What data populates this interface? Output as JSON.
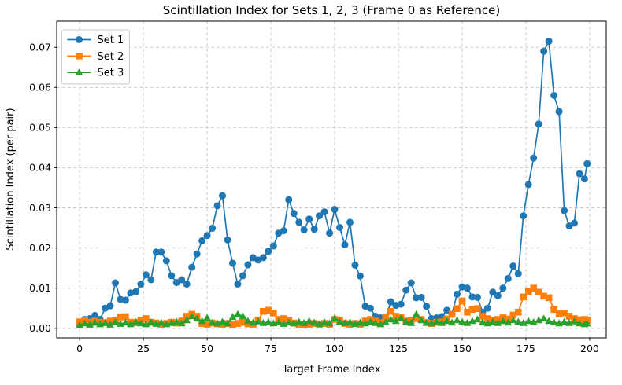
{
  "chart_data": {
    "type": "line",
    "title": "Scintillation Index for Sets 1, 2, 3 (Frame 0 as Reference)",
    "xlabel": "Target Frame Index",
    "ylabel": "Scintillation Index (per pair)",
    "xlim": [
      -9,
      206.5
    ],
    "ylim": [
      -0.0024,
      0.0765
    ],
    "xticks": [
      0,
      25,
      50,
      75,
      100,
      125,
      150,
      175,
      200
    ],
    "yticks": [
      0,
      0.01,
      0.02,
      0.03,
      0.04,
      0.05,
      0.06,
      0.07
    ],
    "ytick_labels": [
      "0.00",
      "0.01",
      "0.02",
      "0.03",
      "0.04",
      "0.05",
      "0.06",
      "0.07"
    ],
    "grid": true,
    "grid_style": "dashed",
    "legend_position": "upper-left",
    "legend_labels": [
      "Set 1",
      "Set 2",
      "Set 3"
    ],
    "x": [
      0,
      2,
      4,
      6,
      8,
      10,
      12,
      14,
      16,
      18,
      20,
      22,
      24,
      26,
      28,
      30,
      32,
      34,
      36,
      38,
      40,
      42,
      44,
      46,
      48,
      50,
      52,
      54,
      56,
      58,
      60,
      62,
      64,
      66,
      68,
      70,
      72,
      74,
      76,
      78,
      80,
      82,
      84,
      86,
      88,
      90,
      92,
      94,
      96,
      98,
      100,
      102,
      104,
      106,
      108,
      110,
      112,
      114,
      116,
      118,
      120,
      122,
      124,
      126,
      128,
      130,
      132,
      134,
      136,
      138,
      140,
      142,
      144,
      146,
      148,
      150,
      152,
      154,
      156,
      158,
      160,
      162,
      164,
      166,
      168,
      170,
      172,
      174,
      176,
      178,
      180,
      182,
      184,
      186,
      188,
      190,
      192,
      194,
      196,
      198,
      199
    ],
    "series": [
      {
        "name": "Set 1",
        "color": "#1f77b4",
        "marker": "circle",
        "values": [
          0.001,
          0.0022,
          0.0024,
          0.0032,
          0.0022,
          0.005,
          0.0056,
          0.0113,
          0.0072,
          0.007,
          0.0088,
          0.0091,
          0.011,
          0.0133,
          0.0121,
          0.019,
          0.019,
          0.0168,
          0.0131,
          0.0114,
          0.0121,
          0.011,
          0.0152,
          0.0185,
          0.0218,
          0.0231,
          0.0249,
          0.0305,
          0.033,
          0.022,
          0.0162,
          0.011,
          0.0131,
          0.0158,
          0.0176,
          0.017,
          0.0176,
          0.0192,
          0.0205,
          0.0237,
          0.0243,
          0.032,
          0.0286,
          0.0264,
          0.0245,
          0.0272,
          0.0247,
          0.028,
          0.029,
          0.0237,
          0.0296,
          0.0251,
          0.0208,
          0.0264,
          0.0157,
          0.013,
          0.0055,
          0.005,
          0.003,
          0.0026,
          0.0024,
          0.0066,
          0.0057,
          0.006,
          0.0095,
          0.0113,
          0.0076,
          0.0077,
          0.0055,
          0.0024,
          0.0026,
          0.0029,
          0.0045,
          0.0035,
          0.0085,
          0.0103,
          0.01,
          0.0078,
          0.0077,
          0.004,
          0.005,
          0.009,
          0.0081,
          0.01,
          0.0124,
          0.0155,
          0.0136,
          0.028,
          0.0358,
          0.0424,
          0.0509,
          0.069,
          0.0715,
          0.058,
          0.054,
          0.0293,
          0.0255,
          0.0262,
          0.0385,
          0.0372,
          0.041
        ]
      },
      {
        "name": "Set 2",
        "color": "#ff7f0e",
        "marker": "square",
        "values": [
          0.0016,
          0.0019,
          0.0015,
          0.0018,
          0.0015,
          0.0014,
          0.0018,
          0.002,
          0.0028,
          0.0029,
          0.0015,
          0.0014,
          0.002,
          0.0024,
          0.0015,
          0.0013,
          0.001,
          0.0012,
          0.0015,
          0.0013,
          0.0018,
          0.003,
          0.0035,
          0.003,
          0.0012,
          0.001,
          0.0013,
          0.0011,
          0.001,
          0.0012,
          0.0009,
          0.0012,
          0.0015,
          0.0011,
          0.001,
          0.002,
          0.0042,
          0.0045,
          0.0038,
          0.0022,
          0.0024,
          0.002,
          0.0013,
          0.001,
          0.0008,
          0.001,
          0.0012,
          0.001,
          0.0012,
          0.001,
          0.0022,
          0.002,
          0.0012,
          0.001,
          0.0012,
          0.001,
          0.0018,
          0.0022,
          0.0018,
          0.0014,
          0.0028,
          0.0042,
          0.003,
          0.0026,
          0.0018,
          0.002,
          0.0024,
          0.0022,
          0.0014,
          0.0012,
          0.0015,
          0.0016,
          0.0023,
          0.0035,
          0.0049,
          0.0068,
          0.004,
          0.0047,
          0.0049,
          0.003,
          0.0024,
          0.002,
          0.0022,
          0.0026,
          0.0023,
          0.0033,
          0.004,
          0.0078,
          0.0092,
          0.01,
          0.009,
          0.008,
          0.0076,
          0.0047,
          0.0036,
          0.0038,
          0.003,
          0.0024,
          0.0021,
          0.0022,
          0.002
        ]
      },
      {
        "name": "Set 3",
        "color": "#2ca02c",
        "marker": "triangle",
        "values": [
          0.0008,
          0.0012,
          0.0009,
          0.0014,
          0.001,
          0.0013,
          0.0009,
          0.0015,
          0.0011,
          0.0014,
          0.001,
          0.0016,
          0.0012,
          0.001,
          0.0015,
          0.0011,
          0.0014,
          0.001,
          0.0013,
          0.0016,
          0.0012,
          0.002,
          0.003,
          0.0024,
          0.0018,
          0.0026,
          0.0014,
          0.0012,
          0.0016,
          0.0012,
          0.0028,
          0.0035,
          0.003,
          0.0018,
          0.0014,
          0.0017,
          0.0013,
          0.0016,
          0.0012,
          0.0015,
          0.0011,
          0.0014,
          0.0012,
          0.0016,
          0.0013,
          0.0018,
          0.0014,
          0.0011,
          0.0015,
          0.0012,
          0.0025,
          0.0016,
          0.0013,
          0.0015,
          0.0011,
          0.0014,
          0.0012,
          0.0016,
          0.0013,
          0.001,
          0.0015,
          0.0022,
          0.0018,
          0.0025,
          0.0016,
          0.0013,
          0.0035,
          0.002,
          0.0014,
          0.0012,
          0.0016,
          0.0013,
          0.0018,
          0.0014,
          0.002,
          0.0016,
          0.0013,
          0.0018,
          0.0022,
          0.0015,
          0.0012,
          0.0016,
          0.0013,
          0.0018,
          0.0014,
          0.002,
          0.0016,
          0.0013,
          0.0018,
          0.0015,
          0.002,
          0.0024,
          0.0018,
          0.0015,
          0.0012,
          0.0016,
          0.0013,
          0.0017,
          0.0012,
          0.001,
          0.0012
        ]
      }
    ],
    "colors": {
      "grid": "#c7c7c7",
      "spine": "#000000",
      "background": "#ffffff",
      "legend_border": "#cccccc"
    }
  }
}
